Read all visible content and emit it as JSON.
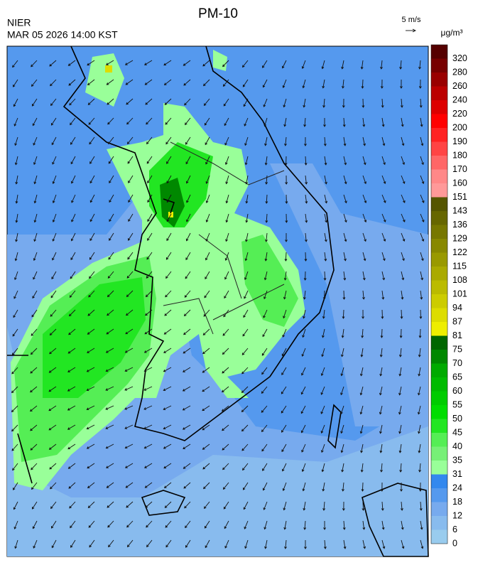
{
  "header": {
    "title": "PM-10",
    "agency": "NIER",
    "datetime": "MAR 05 2026 14:00 KST",
    "wind_scale": "5 m/s"
  },
  "colorbar": {
    "unit": "μg/m³",
    "levels": [
      0,
      6,
      12,
      18,
      24,
      31,
      35,
      40,
      45,
      50,
      55,
      60,
      65,
      70,
      75,
      81,
      87,
      94,
      101,
      108,
      115,
      122,
      129,
      136,
      143,
      151,
      160,
      170,
      180,
      190,
      200,
      220,
      240,
      260,
      280,
      320
    ],
    "colors": [
      "#99ccee",
      "#88bbee",
      "#77aaee",
      "#5599ee",
      "#3388ee",
      "#99ff99",
      "#77f077",
      "#55ee55",
      "#22e622",
      "#00dd00",
      "#00cc00",
      "#00bb00",
      "#00aa00",
      "#008800",
      "#006600",
      "#eeee00",
      "#dddd00",
      "#cccc00",
      "#bbbb00",
      "#aaaa00",
      "#999900",
      "#888800",
      "#777700",
      "#666600",
      "#555500",
      "#ff9999",
      "#ff8888",
      "#ff6666",
      "#ff4444",
      "#ff2222",
      "#ff0000",
      "#dd0000",
      "#bb0000",
      "#990000",
      "#770000",
      "#550000"
    ]
  }
}
